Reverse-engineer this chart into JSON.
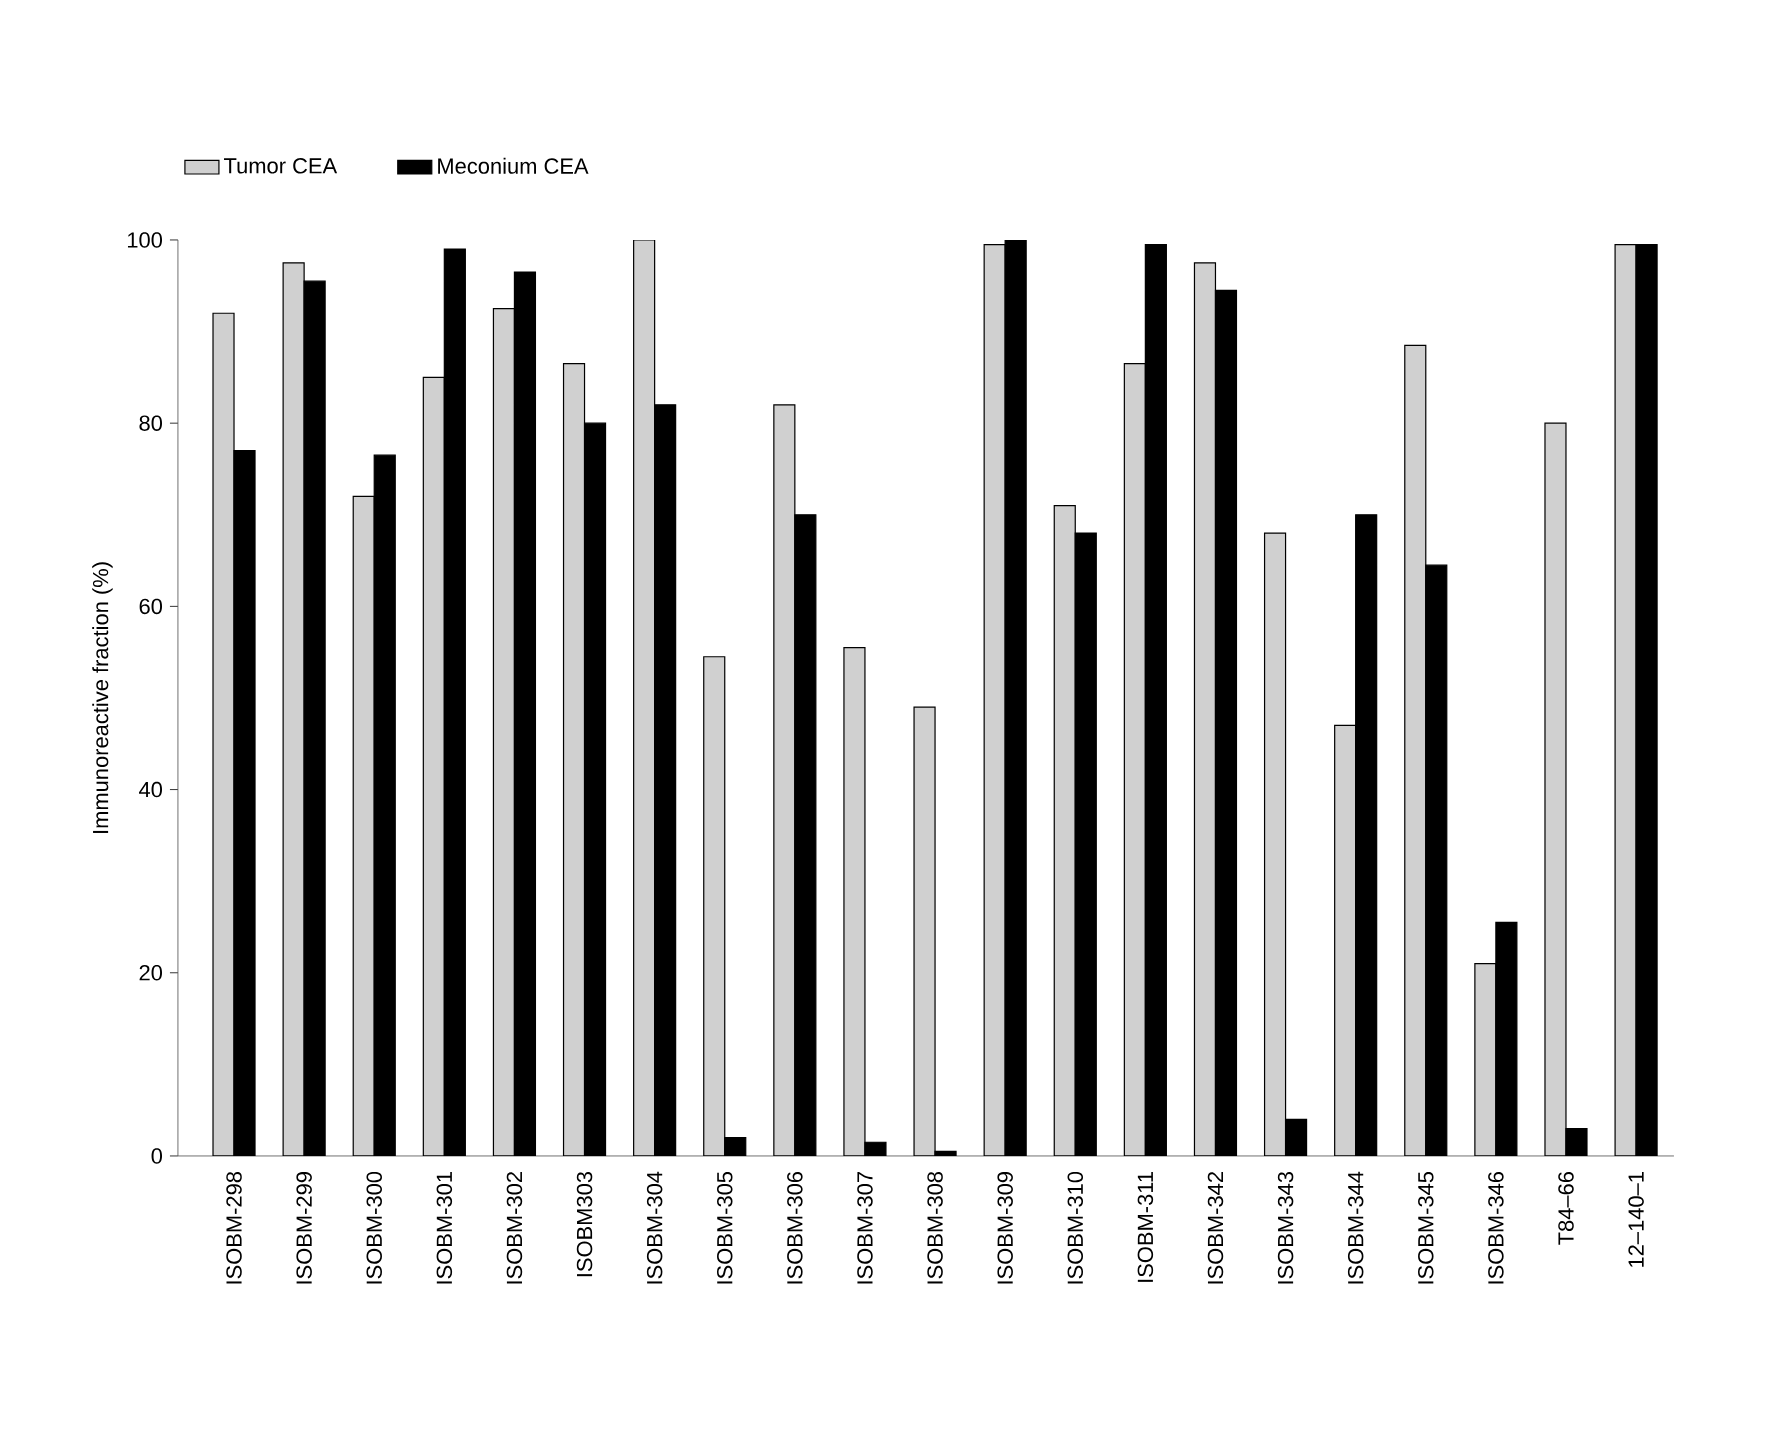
{
  "chart_data": {
    "type": "bar",
    "ylabel": "Immunoreactive fraction (%)",
    "categories": [
      "ISOBM-298",
      "ISOBM-299",
      "ISOBM-300",
      "ISOBM-301",
      "ISOBM-302",
      "ISOBM303",
      "ISOBM-304",
      "ISOBM-305",
      "ISOBM-306",
      "ISOBM-307",
      "ISOBM-308",
      "ISOBM-309",
      "ISOBM-310",
      "ISOBM-311",
      "ISOBM-342",
      "ISOBM-343",
      "ISOBM-344",
      "ISOBM-345",
      "ISOBM-346",
      "T84–66",
      "12–140–1"
    ],
    "series": [
      {
        "name": "Tumor CEA",
        "color": "#d0d0d0",
        "values": [
          92,
          97.5,
          72,
          85,
          92.5,
          86.5,
          100,
          54.5,
          82,
          55.5,
          49,
          99.5,
          71,
          86.5,
          97.5,
          68,
          47,
          88.5,
          21,
          80,
          99.5
        ]
      },
      {
        "name": "Meconium CEA",
        "color": "#000000",
        "values": [
          77,
          95.5,
          76.5,
          99,
          96.5,
          80,
          82,
          2,
          70,
          1.5,
          0.5,
          100,
          68,
          99.5,
          94.5,
          4,
          70,
          64.5,
          25.5,
          3,
          99.5
        ]
      }
    ],
    "ylim": [
      0,
      100
    ],
    "yticks": [
      0,
      20,
      40,
      60,
      80,
      100
    ],
    "grid": false,
    "legend": "top left"
  }
}
